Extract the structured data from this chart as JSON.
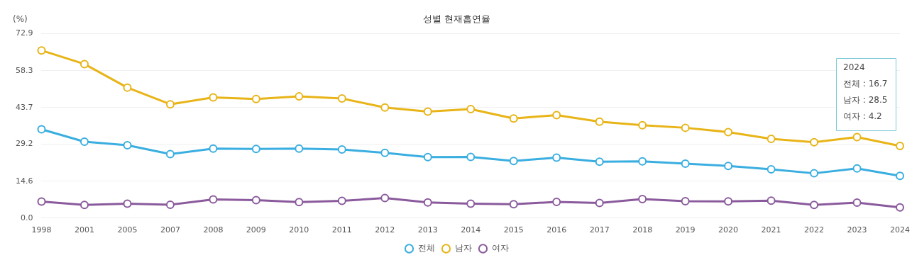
{
  "chart_data": {
    "type": "line",
    "title": "성별 현재흡연율",
    "ylabel": "(%)",
    "categories": [
      "1998",
      "2001",
      "2005",
      "2007",
      "2008",
      "2009",
      "2010",
      "2011",
      "2012",
      "2013",
      "2014",
      "2015",
      "2016",
      "2017",
      "2018",
      "2019",
      "2020",
      "2021",
      "2022",
      "2023",
      "2024"
    ],
    "series": [
      {
        "name": "전체",
        "color": "#3aaee0",
        "values": [
          35.1,
          30.2,
          28.8,
          25.3,
          27.5,
          27.3,
          27.5,
          27.1,
          25.8,
          24.1,
          24.2,
          22.6,
          23.9,
          22.3,
          22.4,
          21.5,
          20.6,
          19.3,
          17.7,
          19.6,
          16.7
        ]
      },
      {
        "name": "남자",
        "color": "#e8b417",
        "values": [
          66.3,
          60.9,
          51.6,
          45.0,
          47.7,
          47.1,
          48.1,
          47.3,
          43.7,
          42.1,
          43.1,
          39.4,
          40.7,
          38.1,
          36.7,
          35.7,
          34.0,
          31.3,
          30.0,
          32.0,
          28.5
        ]
      },
      {
        "name": "여자",
        "color": "#8a5a9c",
        "values": [
          6.5,
          5.2,
          5.7,
          5.3,
          7.4,
          7.1,
          6.3,
          6.8,
          7.9,
          6.2,
          5.7,
          5.5,
          6.4,
          6.0,
          7.5,
          6.7,
          6.6,
          6.9,
          5.2,
          6.1,
          4.2
        ]
      }
    ],
    "ylim": [
      0,
      72.9
    ],
    "yticks": [
      {
        "value": 0,
        "label": "0.0"
      },
      14.6,
      29.2,
      43.7,
      58.3,
      72.9
    ],
    "grid": "y",
    "legend": "bottom",
    "marker": "circle",
    "line_style": "solid",
    "annotations": [
      "2024",
      "전체 : 16.7",
      "남자 : 28.5",
      "여자 : 4.2"
    ]
  }
}
